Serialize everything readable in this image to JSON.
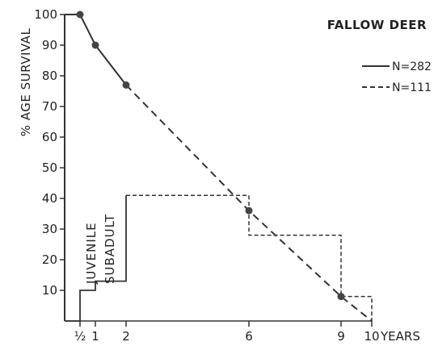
{
  "chart_data": {
    "type": "line",
    "title": "FALLOW DEER",
    "ylabel": "% AGE SURVIVAL",
    "xunit": "YEARS",
    "ylim": [
      0,
      100
    ],
    "xlim": [
      0,
      10
    ],
    "yticks": [
      "10",
      "20",
      "30",
      "40",
      "50",
      "60",
      "70",
      "80",
      "90",
      "100"
    ],
    "xticks": [
      {
        "value": 0.5,
        "label": "½"
      },
      {
        "value": 1,
        "label": "1"
      },
      {
        "value": 2,
        "label": "2"
      },
      {
        "value": 6,
        "label": "6"
      },
      {
        "value": 9,
        "label": "9"
      },
      {
        "value": 10,
        "label": "10"
      }
    ],
    "series": [
      {
        "name": "N=282",
        "style": "solid",
        "role": "survival",
        "x": [
          0,
          0.5,
          1,
          2
        ],
        "y": [
          100,
          100,
          90,
          77
        ],
        "markers": [
          0.5,
          1,
          2
        ]
      },
      {
        "name": "N=111",
        "style": "dashed",
        "role": "survival",
        "x": [
          2,
          6,
          9,
          10
        ],
        "y": [
          77,
          36,
          8,
          0
        ],
        "markers": [
          6,
          9
        ]
      }
    ],
    "mortality_steps": [
      {
        "style": "solid",
        "x": [
          0,
          0.5,
          0.5,
          1,
          1,
          2,
          2
        ],
        "y": [
          0,
          0,
          10,
          10,
          13,
          13,
          41
        ]
      },
      {
        "style": "dashed",
        "x": [
          2,
          6,
          6,
          9,
          9,
          10,
          10
        ],
        "y": [
          41,
          41,
          28,
          28,
          8,
          8,
          0
        ]
      }
    ],
    "annotations": [
      "JUVENILE",
      "SUBADULT"
    ],
    "grid": false,
    "legend_position": "top-right"
  }
}
